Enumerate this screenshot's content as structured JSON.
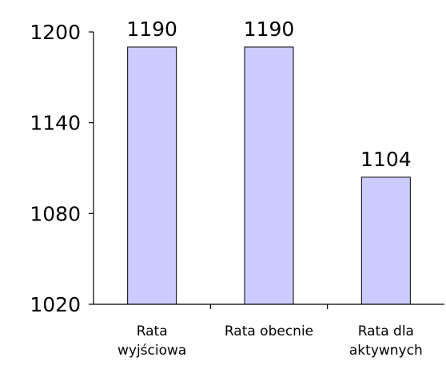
{
  "chart_data": {
    "type": "bar",
    "categories": [
      [
        "Rata",
        "wyjściowa"
      ],
      [
        "Rata obecnie"
      ],
      [
        "Rata dla",
        "aktywnych"
      ]
    ],
    "values": [
      1190,
      1190,
      1104
    ],
    "data_labels": [
      "1190",
      "1190",
      "1104"
    ],
    "ylim": [
      1020,
      1200
    ],
    "yticks": [
      1020,
      1080,
      1140,
      1200
    ],
    "ytick_labels": [
      "1020",
      "1080",
      "1140",
      "1200"
    ],
    "grid": false,
    "legend": "none",
    "title": "",
    "xlabel": "",
    "ylabel": "",
    "bar_color": "#ccccff",
    "bar_edge_color": "#000000",
    "axis_color": "#000000"
  }
}
